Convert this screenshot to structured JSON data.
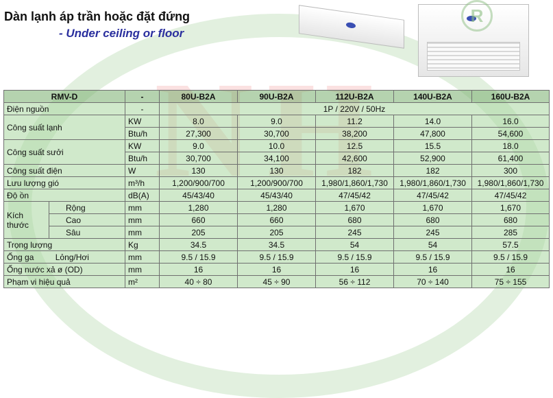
{
  "title": "Dàn lạnh áp trần hoặc đặt đứng",
  "subtitle": "- Under ceiling or floor",
  "table": {
    "header": {
      "series": "RMV-D",
      "unit": "-",
      "models": [
        "80U-B2A",
        "90U-B2A",
        "112U-B2A",
        "140U-B2A",
        "160U-B2A"
      ]
    },
    "power_supply": {
      "label": "Điện nguồn",
      "unit": "-",
      "value": "1P / 220V / 50Hz"
    },
    "cooling": {
      "label": "Công suất lạnh",
      "unit_kw": "KW",
      "kw": [
        "8.0",
        "9.0",
        "11.2",
        "14.0",
        "16.0"
      ],
      "unit_btu": "Btu/h",
      "btu": [
        "27,300",
        "30,700",
        "38,200",
        "47,800",
        "54,600"
      ]
    },
    "heating": {
      "label": "Công suất sưởi",
      "unit_kw": "KW",
      "kw": [
        "9.0",
        "10.0",
        "12.5",
        "15.5",
        "18.0"
      ],
      "unit_btu": "Btu/h",
      "btu": [
        "30,700",
        "34,100",
        "42,600",
        "52,900",
        "61,400"
      ]
    },
    "power": {
      "label": "Công suất điện",
      "unit": "W",
      "values": [
        "130",
        "130",
        "182",
        "182",
        "300"
      ]
    },
    "airflow": {
      "label": "Lưu lượng gió",
      "unit": "m³/h",
      "values": [
        "1,200/900/700",
        "1,200/900/700",
        "1,980/1,860/1,730",
        "1,980/1,860/1,730",
        "1,980/1,860/1,730"
      ]
    },
    "noise": {
      "label": "Độ ồn",
      "unit": "dB(A)",
      "values": [
        "45/43/40",
        "45/43/40",
        "47/45/42",
        "47/45/42",
        "47/45/42"
      ]
    },
    "dimensions": {
      "label_line1": "Kích",
      "label_line2": "thước",
      "width": {
        "label": "Rộng",
        "unit": "mm",
        "values": [
          "1,280",
          "1,280",
          "1,670",
          "1,670",
          "1,670"
        ]
      },
      "height": {
        "label": "Cao",
        "unit": "mm",
        "values": [
          "660",
          "660",
          "680",
          "680",
          "680"
        ]
      },
      "depth": {
        "label": "Sâu",
        "unit": "mm",
        "values": [
          "205",
          "205",
          "245",
          "245",
          "285"
        ]
      }
    },
    "weight": {
      "label": "Trọng lượng",
      "unit": "Kg",
      "values": [
        "34.5",
        "34.5",
        "54",
        "54",
        "57.5"
      ]
    },
    "gas_pipe": {
      "label": "Ống ga",
      "sublabel": "Lỏng/Hơi",
      "unit": "mm",
      "values": [
        "9.5 / 15.9",
        "9.5 / 15.9",
        "9.5 / 15.9",
        "9.5 / 15.9",
        "9.5 / 15.9"
      ]
    },
    "drain": {
      "label": "Ống nước xả ø (OD)",
      "unit": "mm",
      "values": [
        "16",
        "16",
        "16",
        "16",
        "16"
      ]
    },
    "effective_range": {
      "label": "Phạm vi hiệu quả",
      "unit": "m²",
      "values": [
        "40 ÷ 80",
        "45 ÷ 90",
        "56 ÷ 112",
        "70 ÷ 140",
        "75 ÷ 155"
      ]
    }
  },
  "watermark": {
    "letters": "NH",
    "mark": "R"
  },
  "colors": {
    "table_bg": "#b4dca9",
    "header_bg": "#8cc47e",
    "subtitle": "#2a2f9e"
  }
}
